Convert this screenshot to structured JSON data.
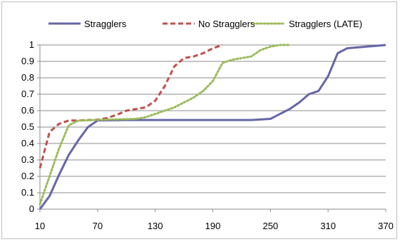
{
  "chart_data": {
    "type": "line",
    "title": "",
    "xlabel": "",
    "ylabel": "",
    "xlim": [
      10,
      370
    ],
    "ylim": [
      0,
      1
    ],
    "x_ticks": [
      "10",
      "70",
      "130",
      "190",
      "250",
      "310",
      "370"
    ],
    "y_ticks": [
      "0",
      "0.1",
      "0.2",
      "0.3",
      "0.4",
      "0.5",
      "0.6",
      "0.7",
      "0.8",
      "0.9",
      "1"
    ],
    "grid": "horizontal",
    "legend_position": "top",
    "series": [
      {
        "name": "Stragglers",
        "style": "solid",
        "color": "#6666a8",
        "x": [
          10,
          20,
          30,
          40,
          50,
          60,
          70,
          100,
          150,
          200,
          230,
          250,
          260,
          270,
          280,
          290,
          300,
          310,
          320,
          330,
          350,
          360,
          370
        ],
        "y": [
          0,
          0.08,
          0.21,
          0.33,
          0.42,
          0.5,
          0.54,
          0.543,
          0.543,
          0.543,
          0.543,
          0.55,
          0.58,
          0.61,
          0.65,
          0.7,
          0.72,
          0.81,
          0.95,
          0.98,
          0.99,
          0.995,
          1
        ]
      },
      {
        "name": "No Stragglers",
        "style": "dashed",
        "color": "#c0504d",
        "x": [
          10,
          20,
          30,
          40,
          50,
          70,
          80,
          90,
          100,
          120,
          130,
          140,
          150,
          160,
          170,
          180,
          190,
          200
        ],
        "y": [
          0.25,
          0.47,
          0.52,
          0.54,
          0.54,
          0.545,
          0.555,
          0.575,
          0.6,
          0.62,
          0.66,
          0.75,
          0.87,
          0.92,
          0.93,
          0.95,
          0.98,
          1
        ]
      },
      {
        "name": "Stragglers (LATE)",
        "style": "dotted",
        "color": "#9bbb59",
        "x": [
          10,
          20,
          30,
          40,
          50,
          80,
          110,
          120,
          130,
          140,
          150,
          160,
          170,
          180,
          190,
          200,
          210,
          220,
          230,
          240,
          250,
          260,
          270
        ],
        "y": [
          0.03,
          0.2,
          0.37,
          0.51,
          0.54,
          0.545,
          0.55,
          0.56,
          0.58,
          0.6,
          0.62,
          0.65,
          0.68,
          0.72,
          0.78,
          0.89,
          0.91,
          0.92,
          0.93,
          0.97,
          0.99,
          1,
          1
        ]
      }
    ]
  }
}
